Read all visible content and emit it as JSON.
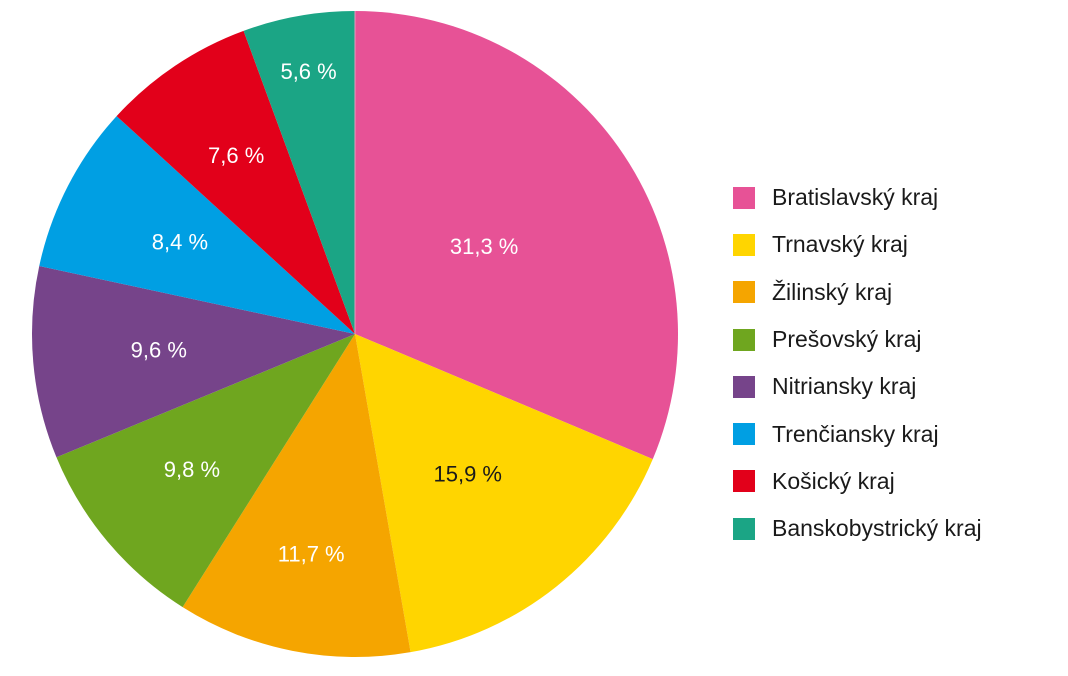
{
  "chart_data": {
    "type": "pie",
    "start": "12 o'clock",
    "direction": "clockwise",
    "legend_placement": "right",
    "slices": [
      {
        "name": "Bratislavský kraj",
        "value": 31.3,
        "label": "31,3 %",
        "color": "#e75296",
        "label_color": "#ffffff"
      },
      {
        "name": "Trnavský kraj",
        "value": 15.9,
        "label": "15,9 %",
        "color": "#ffd500",
        "label_color": "#1a1a1a"
      },
      {
        "name": "Žilinský kraj",
        "value": 11.7,
        "label": "11,7 %",
        "color": "#f5a500",
        "label_color": "#ffffff"
      },
      {
        "name": "Prešovský kraj",
        "value": 9.8,
        "label": "9,8 %",
        "color": "#6fa61f",
        "label_color": "#ffffff"
      },
      {
        "name": "Nitriansky kraj",
        "value": 9.6,
        "label": "9,6 %",
        "color": "#76448a",
        "label_color": "#ffffff"
      },
      {
        "name": "Trenčiansky kraj",
        "value": 8.4,
        "label": "8,4 %",
        "color": "#009fe3",
        "label_color": "#ffffff"
      },
      {
        "name": "Košický kraj",
        "value": 7.6,
        "label": "7,6 %",
        "color": "#e2001a",
        "label_color": "#ffffff"
      },
      {
        "name": "Banskobystrický kraj",
        "value": 5.6,
        "label": "5,6 %",
        "color": "#1ba585",
        "label_color": "#ffffff"
      }
    ]
  }
}
